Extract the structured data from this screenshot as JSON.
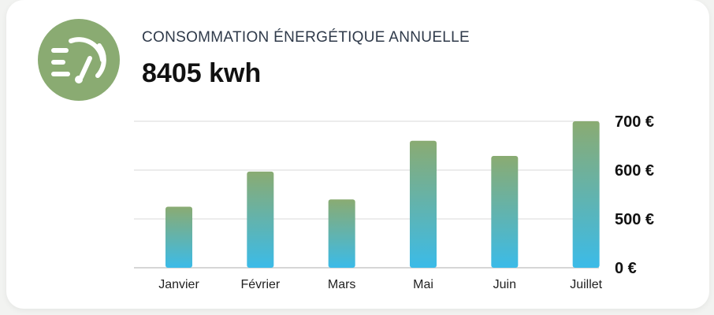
{
  "header": {
    "title": "CONSOMMATION ÉNERGÉTIQUE ANNUELLE",
    "value": "8405 kwh",
    "icon": "energy-gauge-icon",
    "icon_color": "#8aab72"
  },
  "chart_data": {
    "type": "bar",
    "categories": [
      "Janvier",
      "Février",
      "Mars",
      "Mai",
      "Juin",
      "Juillet"
    ],
    "values": [
      525,
      597,
      540,
      660,
      629,
      700
    ],
    "yticks": [
      0,
      500,
      600,
      700
    ],
    "ytick_labels": [
      "0 €",
      "500 €",
      "600 €",
      "700 €"
    ],
    "y_axis_position": "right",
    "grid": true,
    "bar_gradient": [
      "#8aab72",
      "#3bbbe8"
    ],
    "title": "",
    "xlabel": "",
    "ylabel": ""
  }
}
